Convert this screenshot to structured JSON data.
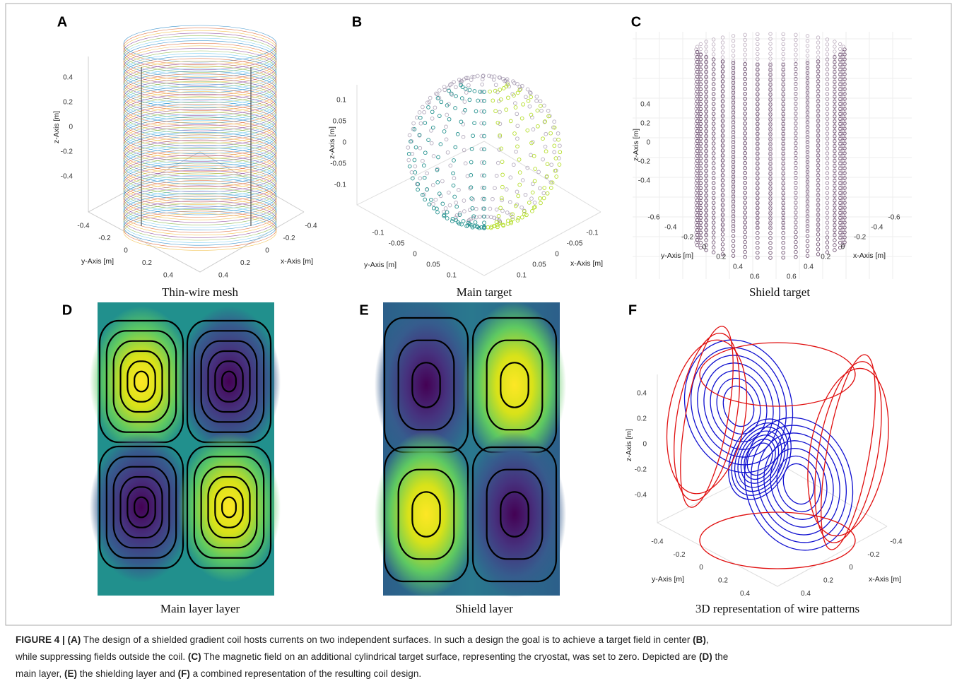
{
  "panels": [
    {
      "label": "A",
      "caption": "Thin-wire mesh",
      "z_axis_label": "z-Axis [m]",
      "z_ticks": [
        "0.4",
        "0.2",
        "0",
        "-0.2",
        "-0.4"
      ],
      "y_axis_label": "y-Axis [m]",
      "y_ticks": [
        "-0.4",
        "-0.2",
        "0",
        "0.2",
        "0.4"
      ],
      "x_axis_label": "x-Axis [m]",
      "x_ticks": [
        "-0.4",
        "-0.2",
        "0",
        "0.2",
        "0.4"
      ]
    },
    {
      "label": "B",
      "caption": "Main target",
      "z_axis_label": "z-Axis [m]",
      "z_ticks": [
        "0.1",
        "0.05",
        "0",
        "-0.05",
        "-0.1"
      ],
      "y_axis_label": "y-Axis [m]",
      "y_ticks": [
        "-0.1",
        "-0.05",
        "0",
        "0.05",
        "0.1"
      ],
      "x_axis_label": "x-Axis [m]",
      "x_ticks": [
        "-0.1",
        "-0.05",
        "0",
        "0.05",
        "0.1"
      ]
    },
    {
      "label": "C",
      "caption": "Shield target",
      "z_axis_label": "z-Axis [m]",
      "z_ticks": [
        "0.4",
        "0.2",
        "0",
        "-0.2",
        "-0.4"
      ],
      "y_axis_label": "y-Axis [m]",
      "y_ticks": [
        "-0.6",
        "-0.4",
        "-0.2",
        "0",
        "0.2",
        "0.4",
        "0.6"
      ],
      "x_axis_label": "x-Axis [m]",
      "x_ticks": [
        "-0.6",
        "-0.4",
        "-0.2",
        "0",
        "0.2",
        "0.4",
        "0.6"
      ]
    },
    {
      "label": "D",
      "caption": "Main layer layer"
    },
    {
      "label": "E",
      "caption": "Shield layer"
    },
    {
      "label": "F",
      "caption": "3D representation of wire patterns",
      "z_axis_label": "z-Axis [m]",
      "z_ticks": [
        "0.4",
        "0.2",
        "0",
        "-0.2",
        "-0.4"
      ],
      "y_axis_label": "y-Axis [m]",
      "y_ticks": [
        "-0.4",
        "-0.2",
        "0",
        "0.2",
        "0.4"
      ],
      "x_axis_label": "x-Axis [m]",
      "x_ticks": [
        "-0.4",
        "-0.2",
        "0",
        "0.2",
        "0.4"
      ]
    }
  ],
  "figure_caption": [
    [
      {
        "text": "FIGURE 4 | (A)",
        "bold": true
      },
      {
        "text": " The design of a shielded gradient coil hosts currents on two independent surfaces. In such a design the goal is to achieve a target field in center ",
        "bold": false
      },
      {
        "text": "(B)",
        "bold": true
      },
      {
        "text": ",",
        "bold": false
      }
    ],
    [
      {
        "text": "while suppressing fields outside the coil. ",
        "bold": false
      },
      {
        "text": "(C)",
        "bold": true
      },
      {
        "text": " The magnetic field on an additional cylindrical target surface, representing the cryostat, was set to zero. Depicted are ",
        "bold": false
      },
      {
        "text": "(D)",
        "bold": true
      },
      {
        "text": " the",
        "bold": false
      }
    ],
    [
      {
        "text": "main layer, ",
        "bold": false
      },
      {
        "text": "(E)",
        "bold": true
      },
      {
        "text": " the shielding layer and ",
        "bold": false
      },
      {
        "text": "(F)",
        "bold": true
      },
      {
        "text": " a combined representation of the resulting coil design.",
        "bold": false
      }
    ]
  ]
}
